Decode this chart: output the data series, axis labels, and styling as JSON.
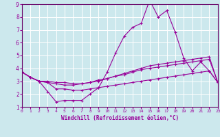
{
  "xlabel": "Windchill (Refroidissement éolien,°C)",
  "x": [
    0,
    1,
    2,
    3,
    4,
    5,
    6,
    7,
    8,
    9,
    10,
    11,
    12,
    13,
    14,
    15,
    16,
    17,
    18,
    19,
    20,
    21,
    22,
    23
  ],
  "line1": [
    3.7,
    3.3,
    3.0,
    2.2,
    1.4,
    1.5,
    1.5,
    1.5,
    2.0,
    2.5,
    3.7,
    5.2,
    6.5,
    7.2,
    7.5,
    9.3,
    8.0,
    8.5,
    6.8,
    4.8,
    3.8,
    4.5,
    3.8,
    2.9
  ],
  "line2": [
    3.7,
    3.3,
    3.0,
    2.9,
    2.8,
    2.7,
    2.7,
    2.8,
    2.9,
    3.1,
    3.2,
    3.4,
    3.6,
    3.8,
    4.0,
    4.2,
    4.3,
    4.4,
    4.5,
    4.6,
    4.7,
    4.8,
    4.9,
    2.9
  ],
  "line3": [
    3.7,
    3.3,
    3.0,
    3.0,
    2.9,
    2.9,
    2.8,
    2.8,
    2.9,
    3.0,
    3.2,
    3.4,
    3.5,
    3.7,
    3.9,
    4.0,
    4.1,
    4.2,
    4.3,
    4.4,
    4.5,
    4.6,
    4.7,
    2.9
  ],
  "line4": [
    3.7,
    3.3,
    3.0,
    2.9,
    2.4,
    2.4,
    2.3,
    2.3,
    2.4,
    2.5,
    2.6,
    2.7,
    2.8,
    2.9,
    3.0,
    3.1,
    3.2,
    3.3,
    3.4,
    3.5,
    3.6,
    3.7,
    3.8,
    2.9
  ],
  "line_color": "#990099",
  "bg_color": "#cce8ed",
  "grid_color": "#ffffff",
  "axis_color": "#660066",
  "ylim": [
    1,
    9
  ],
  "xlim": [
    0,
    23
  ]
}
